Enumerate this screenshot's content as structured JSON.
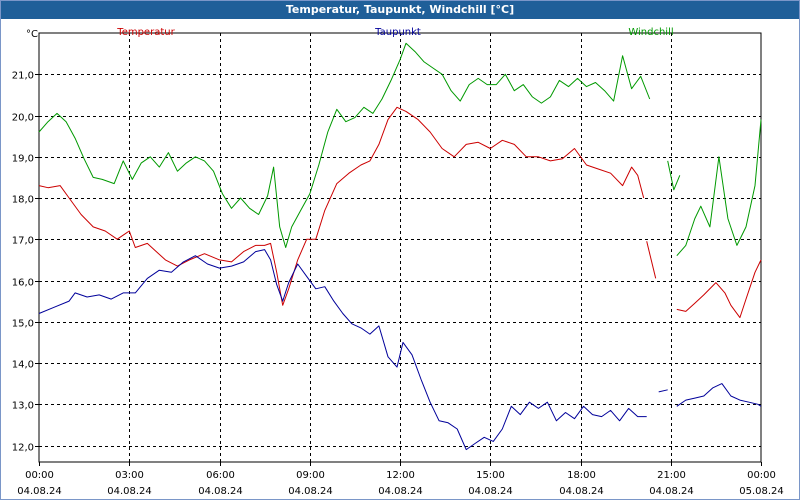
{
  "window": {
    "title": "Temperatur, Taupunkt, Windchill [°C]"
  },
  "chart_data": {
    "type": "line",
    "title": "Temperatur, Taupunkt, Windchill [°C]",
    "ylabel": "°C",
    "xlabel": "",
    "ylim": [
      11.6,
      22.0
    ],
    "xlim_hours": [
      0,
      24
    ],
    "grid": true,
    "y_ticks": [
      "12,0",
      "13,0",
      "14,0",
      "15,0",
      "16,0",
      "17,0",
      "18,0",
      "19,0",
      "20,0",
      "21,0"
    ],
    "x_ticks": [
      {
        "time": "00:00",
        "date": "04.08.24"
      },
      {
        "time": "03:00",
        "date": "04.08.24"
      },
      {
        "time": "06:00",
        "date": "04.08.24"
      },
      {
        "time": "09:00",
        "date": "04.08.24"
      },
      {
        "time": "12:00",
        "date": "04.08.24"
      },
      {
        "time": "15:00",
        "date": "04.08.24"
      },
      {
        "time": "18:00",
        "date": "04.08.24"
      },
      {
        "time": "21:00",
        "date": "04.08.24"
      },
      {
        "time": "00:00",
        "date": "05.08.24"
      }
    ],
    "series": [
      {
        "name": "Temperatur",
        "color": "#cc0000",
        "segments": [
          [
            [
              0.0,
              18.3
            ],
            [
              0.3,
              18.25
            ],
            [
              0.7,
              18.3
            ],
            [
              1.0,
              18.0
            ],
            [
              1.4,
              17.6
            ],
            [
              1.8,
              17.3
            ],
            [
              2.2,
              17.2
            ],
            [
              2.6,
              17.0
            ],
            [
              3.0,
              17.2
            ],
            [
              3.2,
              16.8
            ],
            [
              3.6,
              16.9
            ],
            [
              3.9,
              16.7
            ],
            [
              4.2,
              16.5
            ],
            [
              4.6,
              16.35
            ],
            [
              5.0,
              16.5
            ],
            [
              5.5,
              16.65
            ],
            [
              6.0,
              16.5
            ],
            [
              6.4,
              16.45
            ],
            [
              6.8,
              16.7
            ],
            [
              7.2,
              16.85
            ],
            [
              7.5,
              16.85
            ],
            [
              7.7,
              16.9
            ],
            [
              7.9,
              16.2
            ],
            [
              8.1,
              15.4
            ],
            [
              8.3,
              15.8
            ],
            [
              8.6,
              16.5
            ],
            [
              8.9,
              17.0
            ],
            [
              9.2,
              17.0
            ],
            [
              9.5,
              17.7
            ],
            [
              9.9,
              18.35
            ],
            [
              10.3,
              18.6
            ],
            [
              10.7,
              18.8
            ],
            [
              11.0,
              18.9
            ],
            [
              11.3,
              19.3
            ],
            [
              11.6,
              19.9
            ],
            [
              11.9,
              20.2
            ],
            [
              12.2,
              20.1
            ],
            [
              12.6,
              19.9
            ],
            [
              13.0,
              19.6
            ],
            [
              13.4,
              19.2
            ],
            [
              13.8,
              19.0
            ],
            [
              14.2,
              19.3
            ],
            [
              14.6,
              19.35
            ],
            [
              15.0,
              19.2
            ],
            [
              15.4,
              19.4
            ],
            [
              15.8,
              19.3
            ],
            [
              16.2,
              19.0
            ],
            [
              16.6,
              19.0
            ],
            [
              17.0,
              18.9
            ],
            [
              17.4,
              18.95
            ],
            [
              17.8,
              19.2
            ],
            [
              18.2,
              18.8
            ],
            [
              18.6,
              18.7
            ],
            [
              19.0,
              18.6
            ],
            [
              19.4,
              18.3
            ],
            [
              19.7,
              18.75
            ],
            [
              19.9,
              18.55
            ],
            [
              20.1,
              18.0
            ]
          ],
          [
            [
              20.2,
              16.95
            ],
            [
              20.5,
              16.05
            ]
          ],
          [
            [
              21.2,
              15.3
            ],
            [
              21.5,
              15.25
            ],
            [
              21.8,
              15.45
            ],
            [
              22.1,
              15.65
            ],
            [
              22.5,
              15.95
            ],
            [
              22.8,
              15.7
            ],
            [
              23.0,
              15.4
            ],
            [
              23.3,
              15.1
            ],
            [
              23.5,
              15.55
            ],
            [
              23.8,
              16.2
            ],
            [
              24.0,
              16.5
            ]
          ]
        ]
      },
      {
        "name": "Taupunkt",
        "color": "#00009a",
        "segments": [
          [
            [
              0.0,
              15.2
            ],
            [
              0.5,
              15.35
            ],
            [
              1.0,
              15.5
            ],
            [
              1.2,
              15.7
            ],
            [
              1.6,
              15.6
            ],
            [
              2.0,
              15.65
            ],
            [
              2.4,
              15.55
            ],
            [
              2.8,
              15.7
            ],
            [
              3.2,
              15.7
            ],
            [
              3.6,
              16.05
            ],
            [
              4.0,
              16.25
            ],
            [
              4.4,
              16.2
            ],
            [
              4.8,
              16.45
            ],
            [
              5.2,
              16.6
            ],
            [
              5.6,
              16.4
            ],
            [
              6.0,
              16.3
            ],
            [
              6.4,
              16.35
            ],
            [
              6.8,
              16.45
            ],
            [
              7.2,
              16.7
            ],
            [
              7.5,
              16.75
            ],
            [
              7.7,
              16.5
            ],
            [
              7.9,
              15.9
            ],
            [
              8.1,
              15.5
            ],
            [
              8.3,
              15.95
            ],
            [
              8.6,
              16.4
            ],
            [
              8.9,
              16.1
            ],
            [
              9.2,
              15.8
            ],
            [
              9.5,
              15.85
            ],
            [
              9.8,
              15.5
            ],
            [
              10.1,
              15.2
            ],
            [
              10.4,
              14.95
            ],
            [
              10.7,
              14.85
            ],
            [
              11.0,
              14.7
            ],
            [
              11.3,
              14.9
            ],
            [
              11.6,
              14.15
            ],
            [
              11.9,
              13.9
            ],
            [
              12.1,
              14.5
            ],
            [
              12.4,
              14.2
            ],
            [
              12.7,
              13.6
            ],
            [
              13.0,
              13.05
            ],
            [
              13.3,
              12.6
            ],
            [
              13.6,
              12.55
            ],
            [
              13.9,
              12.4
            ],
            [
              14.2,
              11.9
            ],
            [
              14.5,
              12.05
            ],
            [
              14.8,
              12.2
            ],
            [
              15.1,
              12.1
            ],
            [
              15.4,
              12.4
            ],
            [
              15.7,
              12.95
            ],
            [
              16.0,
              12.75
            ],
            [
              16.3,
              13.05
            ],
            [
              16.6,
              12.9
            ],
            [
              16.9,
              13.05
            ],
            [
              17.2,
              12.6
            ],
            [
              17.5,
              12.8
            ],
            [
              17.8,
              12.65
            ],
            [
              18.1,
              12.95
            ],
            [
              18.4,
              12.75
            ],
            [
              18.7,
              12.7
            ],
            [
              19.0,
              12.85
            ],
            [
              19.3,
              12.6
            ],
            [
              19.6,
              12.9
            ],
            [
              19.9,
              12.7
            ],
            [
              20.2,
              12.7
            ]
          ],
          [
            [
              20.6,
              13.3
            ],
            [
              20.9,
              13.35
            ]
          ],
          [
            [
              21.2,
              12.95
            ],
            [
              21.5,
              13.1
            ],
            [
              21.8,
              13.15
            ],
            [
              22.1,
              13.2
            ],
            [
              22.4,
              13.4
            ],
            [
              22.7,
              13.5
            ],
            [
              23.0,
              13.2
            ],
            [
              23.3,
              13.1
            ],
            [
              23.6,
              13.05
            ],
            [
              23.9,
              13.0
            ],
            [
              24.0,
              12.95
            ]
          ]
        ]
      },
      {
        "name": "Windchill",
        "color": "#009900",
        "segments": [
          [
            [
              0.0,
              19.6
            ],
            [
              0.3,
              19.85
            ],
            [
              0.6,
              20.05
            ],
            [
              0.9,
              19.85
            ],
            [
              1.2,
              19.45
            ],
            [
              1.5,
              18.95
            ],
            [
              1.8,
              18.5
            ],
            [
              2.1,
              18.45
            ],
            [
              2.5,
              18.35
            ],
            [
              2.8,
              18.9
            ],
            [
              3.1,
              18.45
            ],
            [
              3.4,
              18.85
            ],
            [
              3.7,
              19.0
            ],
            [
              4.0,
              18.75
            ],
            [
              4.3,
              19.1
            ],
            [
              4.6,
              18.65
            ],
            [
              4.9,
              18.85
            ],
            [
              5.2,
              19.0
            ],
            [
              5.5,
              18.9
            ],
            [
              5.8,
              18.65
            ],
            [
              6.1,
              18.1
            ],
            [
              6.4,
              17.75
            ],
            [
              6.7,
              18.0
            ],
            [
              7.0,
              17.75
            ],
            [
              7.3,
              17.6
            ],
            [
              7.6,
              18.05
            ],
            [
              7.8,
              18.75
            ],
            [
              8.0,
              17.3
            ],
            [
              8.2,
              16.8
            ],
            [
              8.4,
              17.3
            ],
            [
              8.7,
              17.7
            ],
            [
              9.0,
              18.1
            ],
            [
              9.3,
              18.8
            ],
            [
              9.6,
              19.6
            ],
            [
              9.9,
              20.15
            ],
            [
              10.2,
              19.85
            ],
            [
              10.5,
              19.95
            ],
            [
              10.8,
              20.2
            ],
            [
              11.1,
              20.05
            ],
            [
              11.4,
              20.4
            ],
            [
              11.7,
              20.85
            ],
            [
              12.0,
              21.35
            ],
            [
              12.2,
              21.75
            ],
            [
              12.5,
              21.55
            ],
            [
              12.8,
              21.3
            ],
            [
              13.1,
              21.15
            ],
            [
              13.4,
              21.0
            ],
            [
              13.7,
              20.6
            ],
            [
              14.0,
              20.35
            ],
            [
              14.3,
              20.75
            ],
            [
              14.6,
              20.9
            ],
            [
              14.9,
              20.75
            ],
            [
              15.2,
              20.75
            ],
            [
              15.5,
              21.0
            ],
            [
              15.8,
              20.6
            ],
            [
              16.1,
              20.75
            ],
            [
              16.4,
              20.45
            ],
            [
              16.7,
              20.3
            ],
            [
              17.0,
              20.45
            ],
            [
              17.3,
              20.85
            ],
            [
              17.6,
              20.7
            ],
            [
              17.9,
              20.9
            ],
            [
              18.2,
              20.7
            ],
            [
              18.5,
              20.8
            ],
            [
              18.8,
              20.6
            ],
            [
              19.1,
              20.35
            ],
            [
              19.4,
              21.45
            ],
            [
              19.7,
              20.65
            ],
            [
              20.0,
              20.95
            ],
            [
              20.3,
              20.4
            ]
          ],
          [
            [
              20.9,
              18.9
            ],
            [
              21.1,
              18.2
            ],
            [
              21.3,
              18.55
            ]
          ],
          [
            [
              21.2,
              16.6
            ],
            [
              21.5,
              16.85
            ],
            [
              21.8,
              17.5
            ],
            [
              22.0,
              17.8
            ],
            [
              22.3,
              17.3
            ],
            [
              22.6,
              19.0
            ],
            [
              22.9,
              17.5
            ],
            [
              23.2,
              16.85
            ],
            [
              23.5,
              17.3
            ],
            [
              23.8,
              18.3
            ],
            [
              24.0,
              19.9
            ]
          ]
        ]
      }
    ]
  }
}
